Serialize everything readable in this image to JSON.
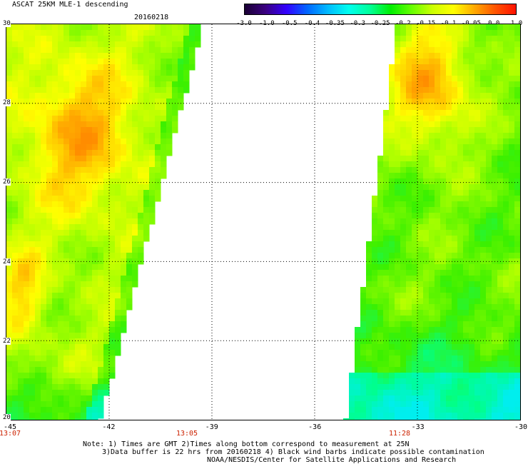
{
  "header": {
    "title": "ASCAT 25KM MLE-1 descending",
    "date": "20160218"
  },
  "colorbar": {
    "ticks": [
      "-3.0",
      "-1.0",
      "-0.5",
      "-0.4",
      "-0.35",
      "-0.3",
      "-0.25",
      "-0.2",
      "-0.15",
      "-0.1",
      "-0.05",
      "0.0",
      "1.0"
    ],
    "colors": [
      "#1a0033",
      "#3a0080",
      "#3300ff",
      "#0066ff",
      "#00bbff",
      "#00ffee",
      "#00ff99",
      "#00ee00",
      "#66ff00",
      "#ccff00",
      "#ffff00",
      "#ffaa00",
      "#ff5500",
      "#ff1100"
    ]
  },
  "map": {
    "lon_range": [
      -45,
      -30
    ],
    "lat_range": [
      20,
      30
    ],
    "x_ticks": [
      "-45",
      "-42",
      "-39",
      "-36",
      "-33",
      "-30"
    ],
    "y_ticks": [
      "30",
      "28",
      "26",
      "24",
      "22",
      "20"
    ],
    "times": [
      "13:07",
      "13:05",
      "11:28"
    ]
  },
  "notes": {
    "line1": "Note: 1) Times are GMT 2)Times along bottom correspond to measurement at 25N",
    "line2": "3)Data buffer is 22 hrs from 20160218 4) Black wind barbs indicate possible contamination",
    "line3": "NOAA/NESDIS/Center for Satellite Applications and Research"
  }
}
